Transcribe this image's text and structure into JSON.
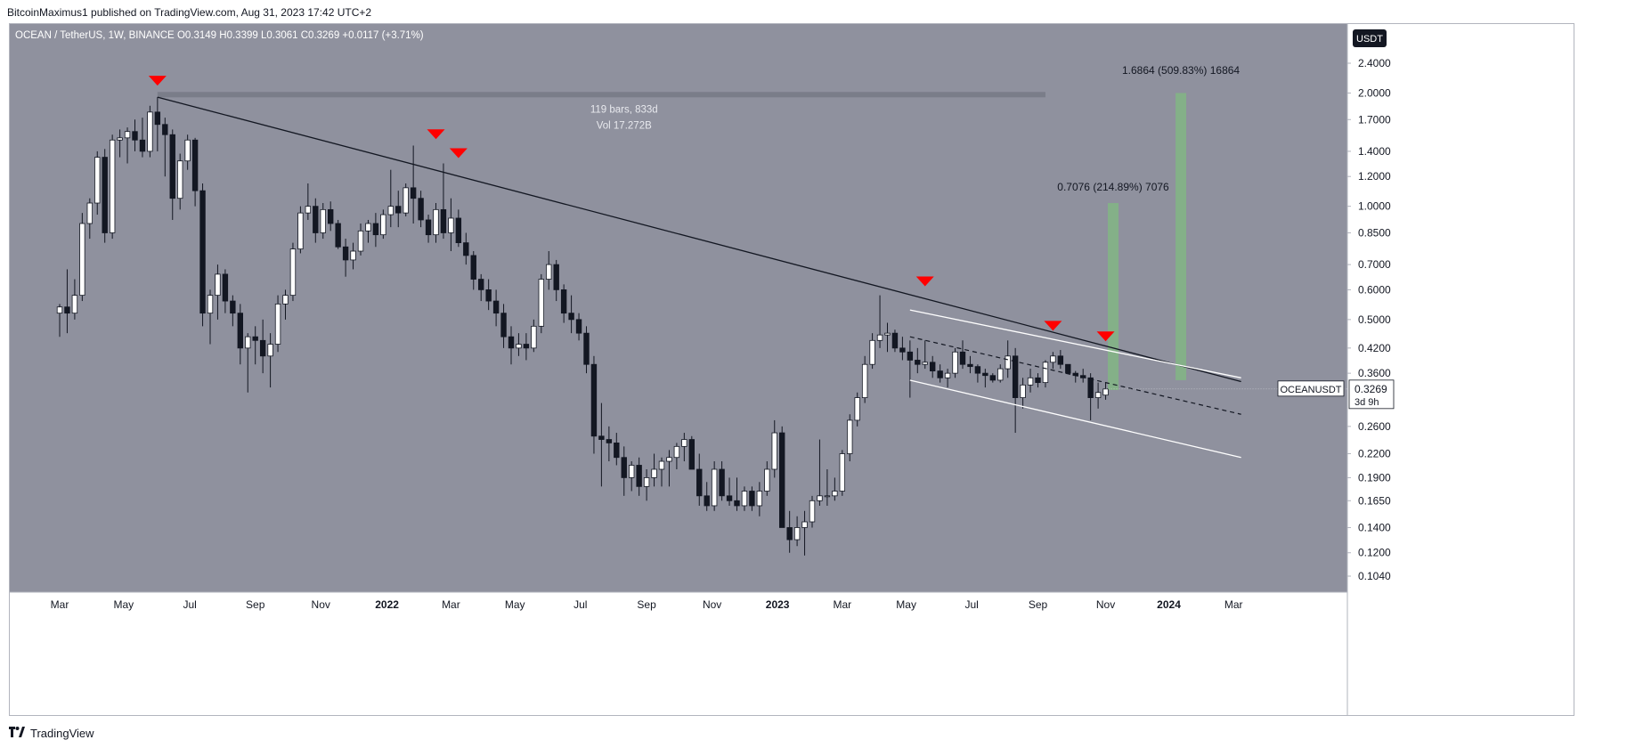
{
  "header": {
    "author": "BitcoinMaximus1",
    "published_text": "published on TradingView.com, Aug 31, 2023 17:42 UTC+2"
  },
  "footer": {
    "brand": "TradingView",
    "logo_icon": "tradingview-logo-icon"
  },
  "chart_data": {
    "type": "candlestick",
    "symbol_title": "OCEAN / TetherUS, 1W, BINANCE",
    "ohlc": {
      "o_label": "O",
      "o": "0.3149",
      "h_label": "H",
      "h": "0.3399",
      "l_label": "L",
      "l": "0.3061",
      "c_label": "C",
      "c": "0.3269",
      "change": "+0.0117 (+3.71%)"
    },
    "currency_badge": "USDT",
    "price_scale": "log",
    "y_ticks": [
      "2.4000",
      "2.0000",
      "1.7000",
      "1.4000",
      "1.2000",
      "1.0000",
      "0.8500",
      "0.7000",
      "0.6000",
      "0.5000",
      "0.4200",
      "0.3600",
      "0.2600",
      "0.2200",
      "0.1900",
      "0.1650",
      "0.1400",
      "0.1200",
      "0.1040"
    ],
    "y_tick_values": [
      2.4,
      2.0,
      1.7,
      1.4,
      1.2,
      1.0,
      0.85,
      0.7,
      0.6,
      0.5,
      0.42,
      0.36,
      0.26,
      0.22,
      0.19,
      0.165,
      0.14,
      0.12,
      0.104
    ],
    "x_ticks": [
      "Mar",
      "May",
      "Jul",
      "Sep",
      "Nov",
      "2022",
      "Mar",
      "May",
      "Jul",
      "Sep",
      "Nov",
      "2023",
      "Mar",
      "May",
      "Jul",
      "Sep",
      "Nov",
      "2024",
      "Mar"
    ],
    "x_tick_week_index": [
      0,
      8.5,
      17.3,
      26,
      34.7,
      43.5,
      52,
      60.5,
      69.2,
      78,
      86.7,
      95.4,
      104,
      112.5,
      121.2,
      130,
      139,
      147.4,
      156
    ],
    "week_start_date": "2021-03-01",
    "last_price_tag": {
      "symbol": "OCEANUSDT",
      "price": "0.3269",
      "countdown": "3d 9h"
    },
    "candles": [
      [
        0.52,
        0.55,
        0.45,
        0.54
      ],
      [
        0.54,
        0.68,
        0.46,
        0.52
      ],
      [
        0.52,
        0.64,
        0.5,
        0.58
      ],
      [
        0.58,
        0.96,
        0.56,
        0.9
      ],
      [
        0.9,
        1.05,
        0.82,
        1.02
      ],
      [
        1.02,
        1.4,
        0.95,
        1.35
      ],
      [
        1.35,
        1.42,
        0.8,
        0.85
      ],
      [
        0.85,
        1.55,
        0.82,
        1.5
      ],
      [
        1.5,
        1.6,
        1.35,
        1.52
      ],
      [
        1.52,
        1.62,
        1.3,
        1.58
      ],
      [
        1.58,
        1.7,
        1.4,
        1.5
      ],
      [
        1.5,
        1.72,
        1.35,
        1.4
      ],
      [
        1.4,
        1.85,
        1.35,
        1.78
      ],
      [
        1.78,
        1.95,
        1.4,
        1.65
      ],
      [
        1.65,
        1.72,
        1.2,
        1.55
      ],
      [
        1.55,
        1.6,
        0.92,
        1.05
      ],
      [
        1.05,
        1.38,
        0.98,
        1.32
      ],
      [
        1.32,
        1.55,
        1.25,
        1.5
      ],
      [
        1.5,
        1.52,
        1.0,
        1.1
      ],
      [
        1.1,
        1.15,
        0.48,
        0.52
      ],
      [
        0.52,
        0.6,
        0.43,
        0.58
      ],
      [
        0.58,
        0.7,
        0.5,
        0.66
      ],
      [
        0.66,
        0.68,
        0.52,
        0.56
      ],
      [
        0.56,
        0.58,
        0.48,
        0.52
      ],
      [
        0.52,
        0.55,
        0.38,
        0.42
      ],
      [
        0.42,
        0.46,
        0.32,
        0.45
      ],
      [
        0.45,
        0.48,
        0.38,
        0.44
      ],
      [
        0.44,
        0.5,
        0.36,
        0.4
      ],
      [
        0.4,
        0.46,
        0.33,
        0.43
      ],
      [
        0.43,
        0.58,
        0.41,
        0.55
      ],
      [
        0.55,
        0.6,
        0.5,
        0.58
      ],
      [
        0.58,
        0.8,
        0.56,
        0.77
      ],
      [
        0.77,
        1.0,
        0.75,
        0.96
      ],
      [
        0.96,
        1.15,
        0.92,
        1.0
      ],
      [
        1.0,
        1.05,
        0.8,
        0.85
      ],
      [
        0.85,
        1.02,
        0.82,
        0.98
      ],
      [
        0.98,
        1.03,
        0.86,
        0.9
      ],
      [
        0.9,
        0.92,
        0.77,
        0.78
      ],
      [
        0.78,
        0.82,
        0.65,
        0.72
      ],
      [
        0.72,
        0.8,
        0.68,
        0.76
      ],
      [
        0.76,
        0.9,
        0.74,
        0.86
      ],
      [
        0.86,
        0.92,
        0.8,
        0.9
      ],
      [
        0.9,
        0.96,
        0.78,
        0.84
      ],
      [
        0.84,
        0.98,
        0.82,
        0.95
      ],
      [
        0.95,
        1.25,
        0.88,
        1.0
      ],
      [
        1.0,
        1.1,
        0.88,
        0.96
      ],
      [
        0.96,
        1.15,
        0.94,
        1.12
      ],
      [
        1.12,
        1.45,
        0.9,
        1.05
      ],
      [
        1.05,
        1.1,
        0.88,
        0.92
      ],
      [
        0.92,
        0.95,
        0.8,
        0.84
      ],
      [
        0.84,
        1.02,
        0.8,
        0.98
      ],
      [
        0.98,
        1.3,
        0.82,
        0.85
      ],
      [
        0.85,
        1.05,
        0.76,
        0.93
      ],
      [
        0.93,
        0.98,
        0.78,
        0.8
      ],
      [
        0.8,
        0.85,
        0.7,
        0.74
      ],
      [
        0.74,
        0.76,
        0.6,
        0.64
      ],
      [
        0.64,
        0.66,
        0.56,
        0.6
      ],
      [
        0.6,
        0.64,
        0.53,
        0.56
      ],
      [
        0.56,
        0.6,
        0.48,
        0.52
      ],
      [
        0.52,
        0.55,
        0.42,
        0.45
      ],
      [
        0.45,
        0.48,
        0.38,
        0.42
      ],
      [
        0.42,
        0.46,
        0.4,
        0.43
      ],
      [
        0.43,
        0.46,
        0.39,
        0.42
      ],
      [
        0.42,
        0.5,
        0.41,
        0.48
      ],
      [
        0.48,
        0.66,
        0.46,
        0.64
      ],
      [
        0.64,
        0.76,
        0.6,
        0.7
      ],
      [
        0.7,
        0.72,
        0.56,
        0.6
      ],
      [
        0.6,
        0.62,
        0.49,
        0.52
      ],
      [
        0.52,
        0.58,
        0.46,
        0.5
      ],
      [
        0.5,
        0.52,
        0.44,
        0.46
      ],
      [
        0.46,
        0.48,
        0.36,
        0.38
      ],
      [
        0.38,
        0.4,
        0.22,
        0.245
      ],
      [
        0.245,
        0.3,
        0.18,
        0.24
      ],
      [
        0.24,
        0.26,
        0.21,
        0.235
      ],
      [
        0.235,
        0.25,
        0.205,
        0.215
      ],
      [
        0.215,
        0.23,
        0.17,
        0.19
      ],
      [
        0.19,
        0.21,
        0.175,
        0.205
      ],
      [
        0.205,
        0.215,
        0.17,
        0.18
      ],
      [
        0.18,
        0.2,
        0.165,
        0.19
      ],
      [
        0.19,
        0.22,
        0.18,
        0.2
      ],
      [
        0.2,
        0.215,
        0.18,
        0.21
      ],
      [
        0.21,
        0.225,
        0.18,
        0.215
      ],
      [
        0.215,
        0.235,
        0.2,
        0.23
      ],
      [
        0.23,
        0.25,
        0.21,
        0.24
      ],
      [
        0.24,
        0.245,
        0.2,
        0.2
      ],
      [
        0.2,
        0.22,
        0.16,
        0.17
      ],
      [
        0.17,
        0.185,
        0.155,
        0.16
      ],
      [
        0.16,
        0.21,
        0.155,
        0.2
      ],
      [
        0.2,
        0.21,
        0.165,
        0.17
      ],
      [
        0.17,
        0.19,
        0.16,
        0.165
      ],
      [
        0.165,
        0.19,
        0.155,
        0.16
      ],
      [
        0.16,
        0.18,
        0.155,
        0.175
      ],
      [
        0.175,
        0.18,
        0.155,
        0.16
      ],
      [
        0.16,
        0.185,
        0.15,
        0.175
      ],
      [
        0.175,
        0.21,
        0.17,
        0.2
      ],
      [
        0.2,
        0.27,
        0.19,
        0.25
      ],
      [
        0.25,
        0.26,
        0.14,
        0.14
      ],
      [
        0.14,
        0.155,
        0.12,
        0.13
      ],
      [
        0.13,
        0.15,
        0.125,
        0.14
      ],
      [
        0.14,
        0.155,
        0.118,
        0.145
      ],
      [
        0.145,
        0.17,
        0.14,
        0.165
      ],
      [
        0.165,
        0.24,
        0.16,
        0.17
      ],
      [
        0.17,
        0.2,
        0.16,
        0.17
      ],
      [
        0.17,
        0.19,
        0.165,
        0.175
      ],
      [
        0.175,
        0.225,
        0.17,
        0.22
      ],
      [
        0.22,
        0.28,
        0.21,
        0.27
      ],
      [
        0.27,
        0.32,
        0.26,
        0.31
      ],
      [
        0.31,
        0.4,
        0.3,
        0.38
      ],
      [
        0.38,
        0.46,
        0.37,
        0.44
      ],
      [
        0.44,
        0.58,
        0.42,
        0.455
      ],
      [
        0.455,
        0.49,
        0.41,
        0.46
      ],
      [
        0.46,
        0.47,
        0.41,
        0.42
      ],
      [
        0.42,
        0.45,
        0.39,
        0.41
      ],
      [
        0.41,
        0.44,
        0.31,
        0.39
      ],
      [
        0.39,
        0.42,
        0.36,
        0.38
      ],
      [
        0.38,
        0.44,
        0.37,
        0.385
      ],
      [
        0.385,
        0.4,
        0.35,
        0.365
      ],
      [
        0.365,
        0.38,
        0.34,
        0.35
      ],
      [
        0.35,
        0.37,
        0.33,
        0.36
      ],
      [
        0.36,
        0.42,
        0.35,
        0.41
      ],
      [
        0.41,
        0.44,
        0.37,
        0.38
      ],
      [
        0.38,
        0.4,
        0.36,
        0.375
      ],
      [
        0.375,
        0.38,
        0.34,
        0.36
      ],
      [
        0.36,
        0.37,
        0.33,
        0.355
      ],
      [
        0.355,
        0.36,
        0.34,
        0.345
      ],
      [
        0.345,
        0.38,
        0.34,
        0.37
      ],
      [
        0.37,
        0.44,
        0.35,
        0.4
      ],
      [
        0.4,
        0.42,
        0.25,
        0.31
      ],
      [
        0.31,
        0.35,
        0.29,
        0.335
      ],
      [
        0.335,
        0.37,
        0.32,
        0.35
      ],
      [
        0.35,
        0.36,
        0.33,
        0.34
      ],
      [
        0.34,
        0.39,
        0.33,
        0.385
      ],
      [
        0.385,
        0.41,
        0.37,
        0.4
      ],
      [
        0.4,
        0.415,
        0.37,
        0.38
      ],
      [
        0.38,
        0.38,
        0.36,
        0.36
      ],
      [
        0.36,
        0.365,
        0.34,
        0.355
      ],
      [
        0.355,
        0.37,
        0.34,
        0.35
      ],
      [
        0.35,
        0.36,
        0.27,
        0.31
      ],
      [
        0.31,
        0.34,
        0.29,
        0.32
      ],
      [
        0.3149,
        0.3399,
        0.3061,
        0.3269
      ]
    ],
    "resistance_line": {
      "from": {
        "week": 13,
        "price": 1.95
      },
      "to": {
        "week": 157,
        "price": 0.342
      }
    },
    "horizontal_zone": {
      "from_week": 13,
      "to_week": 131,
      "price": 1.98
    },
    "channel_upper": {
      "from": {
        "week": 113,
        "price": 0.53
      },
      "to": {
        "week": 157,
        "price": 0.35
      }
    },
    "channel_mid_dashed": {
      "from": {
        "week": 113,
        "price": 0.45
      },
      "to": {
        "week": 157,
        "price": 0.28
      }
    },
    "channel_lower": {
      "from": {
        "week": 113,
        "price": 0.345
      },
      "to": {
        "week": 157,
        "price": 0.215
      }
    },
    "markers": [
      {
        "week": 13,
        "price": 2.15
      },
      {
        "week": 50,
        "price": 1.55
      },
      {
        "week": 53,
        "price": 1.38
      },
      {
        "week": 115,
        "price": 0.63
      },
      {
        "week": 132,
        "price": 0.48
      },
      {
        "week": 139,
        "price": 0.45
      }
    ],
    "measure_labels": [
      {
        "text": "1.6864 (509.83%) 16864",
        "week": 149,
        "price": 2.25,
        "bar_from_price": 0.345,
        "bar_to_price": 2.0
      },
      {
        "text": "0.7076 (214.89%) 7076",
        "week": 140,
        "price": 1.1,
        "bar_from_price": 0.325,
        "bar_to_price": 1.02
      }
    ],
    "range_stats": {
      "line1": "119 bars, 833d",
      "line2": "Vol 17.272B",
      "week": 75,
      "price": 1.7
    },
    "colors": {
      "pane_bg": "#8f919e",
      "up_candle": "#ffffff",
      "down_candle": "#131722",
      "marker": "#ff0000",
      "measure_fill": "#7fbd7f",
      "zone": "#787b86",
      "last_price_box": "#ffffff"
    }
  }
}
